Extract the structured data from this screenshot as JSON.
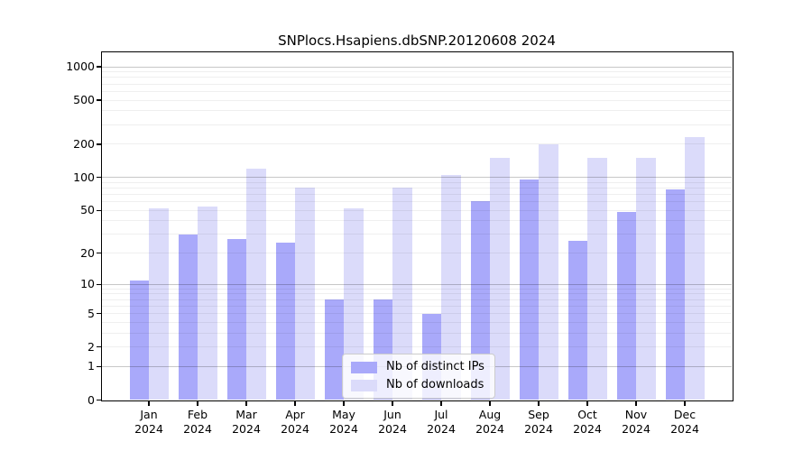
{
  "chart_data": {
    "type": "bar",
    "title": "SNPlocs.Hsapiens.dbSNP.20120608 2024",
    "categories": [
      "Jan 2024",
      "Feb 2024",
      "Mar 2024",
      "Apr 2024",
      "May 2024",
      "Jun 2024",
      "Jul 2024",
      "Aug 2024",
      "Sep 2024",
      "Oct 2024",
      "Nov 2024",
      "Dec 2024"
    ],
    "series": [
      {
        "name": "Nb of distinct IPs",
        "color": "#a9a9fa",
        "values": [
          11,
          30,
          27,
          25,
          7,
          7,
          5,
          61,
          96,
          26,
          48,
          78
        ]
      },
      {
        "name": "Nb of downloads",
        "color": "#dbdbfa",
        "values": [
          52,
          54,
          120,
          80,
          52,
          80,
          105,
          150,
          200,
          150,
          150,
          230
        ]
      }
    ],
    "yscale": "log10(1+v)",
    "y_ticks": [
      0,
      1,
      2,
      5,
      10,
      20,
      50,
      100,
      200,
      500,
      1000
    ],
    "ylim": [
      0,
      1000
    ],
    "grid": true,
    "legend_position": "bottom-center",
    "colors": {
      "major_grid": "#c7c7c7",
      "minor_grid": "#efefef",
      "frame": "#000000",
      "background": "#ffffff",
      "text": "#000000"
    }
  }
}
